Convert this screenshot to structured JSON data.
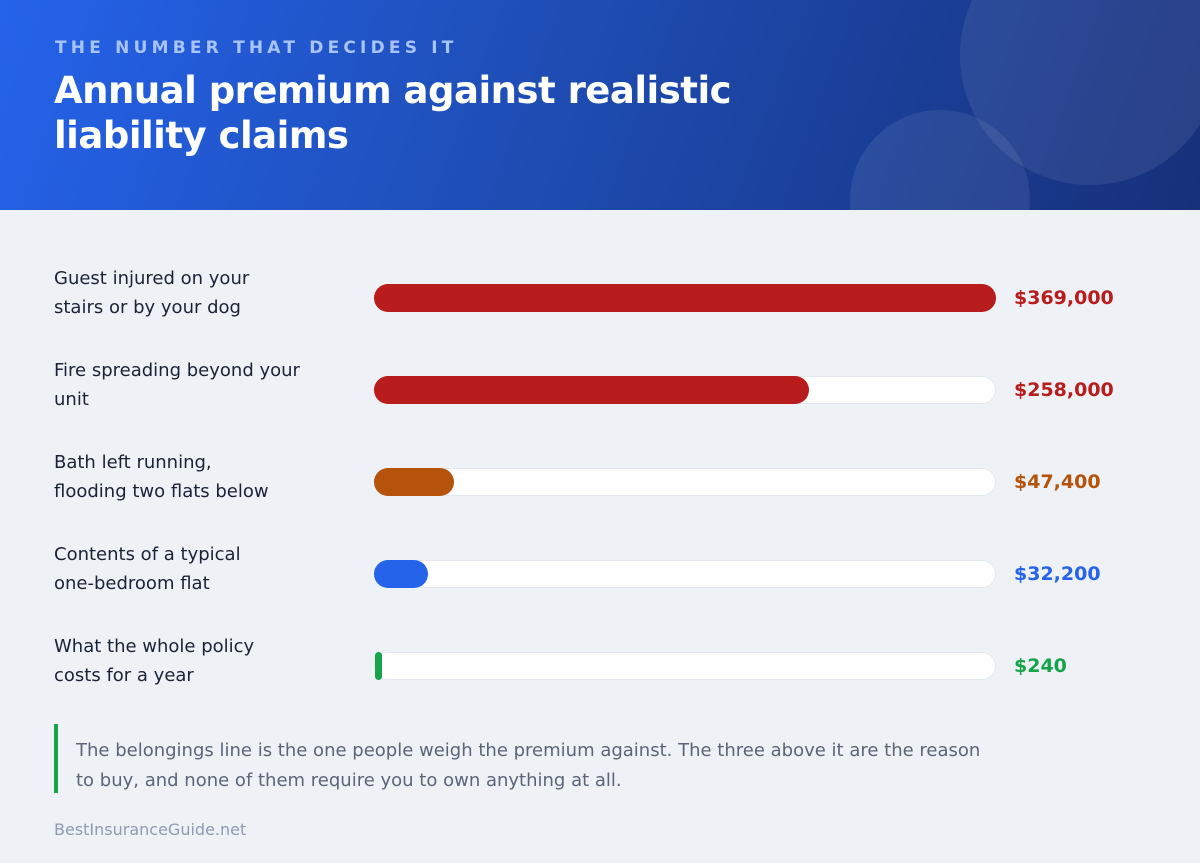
{
  "header": {
    "eyebrow": "THE NUMBER THAT DECIDES IT",
    "title": "Annual premium against realistic liability claims"
  },
  "chart_data": {
    "type": "bar",
    "orientation": "horizontal",
    "categories": [
      "Guest injured on your\nstairs or by your dog",
      "Fire spreading beyond your\nunit",
      "Bath left running,\nflooding two flats below",
      "Contents of a typical\none-bedroom flat",
      "What the whole policy\ncosts for a year"
    ],
    "values": [
      369000,
      258000,
      47400,
      32200,
      240
    ],
    "value_labels": [
      "$369,000",
      "$258,000",
      "$47,400",
      "$32,200",
      "$240"
    ],
    "colors": [
      "#b91c1c",
      "#b91c1c",
      "#b45309",
      "#2563eb",
      "#16a34a"
    ],
    "xlim": [
      0,
      369000
    ],
    "grid": false,
    "legend": "none"
  },
  "note": {
    "text": "The belongings line is the one people weigh the premium against. The three above it are the reason to buy, and none of them require you to own anything at all.",
    "accent": "#16a34a"
  },
  "footer": {
    "source": "BestInsuranceGuide.net"
  }
}
